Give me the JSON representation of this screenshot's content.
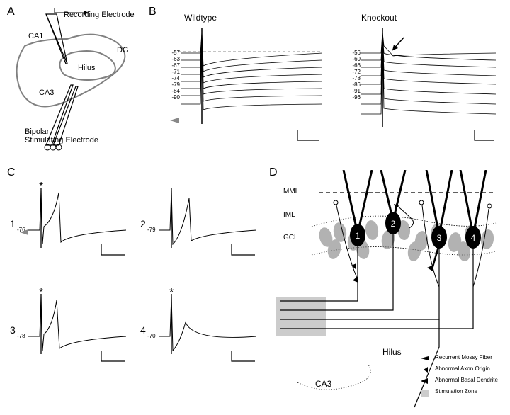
{
  "panel_labels": {
    "A": "A",
    "B": "B",
    "C": "C",
    "D": "D"
  },
  "panelA": {
    "recording_label": "Recording Electrode",
    "stim_label": "Bipolar\nStimulating Electrode",
    "regions": {
      "ca1": "CA1",
      "ca3": "CA3",
      "dg": "DG",
      "hilus": "Hilus"
    },
    "stroke": "#000000",
    "outline_stroke": "#808080",
    "outline_width": 2
  },
  "panelB": {
    "wt_label": "Wildtype",
    "ko_label": "Knockout",
    "wt_values": [
      "-57",
      "-63",
      "-67",
      "-71",
      "-74",
      "-79",
      "-84",
      "-90"
    ],
    "ko_values": [
      "-56",
      "-60",
      "-66",
      "-72",
      "-78",
      "-86",
      "-91",
      "-96"
    ],
    "trace_color": "#000000",
    "dash_color": "#888888",
    "arrow_color_grey": "#888888",
    "arrow_color_black": "#000000",
    "scalebar_color": "#000000",
    "trace_fontsize": 8
  },
  "panelC": {
    "sub_labels": {
      "c1": "1",
      "c2": "2",
      "c3": "3",
      "c4": "4"
    },
    "baselines": {
      "c1": "-76",
      "c2": "-79",
      "c3": "-78",
      "c4": "-70"
    },
    "asterisk": "*",
    "trace_color": "#000000",
    "scalebar_color": "#000000",
    "arrow_color_grey": "#888888"
  },
  "panelD": {
    "layers": {
      "mml": "MML",
      "iml": "IML",
      "gcl": "GCL"
    },
    "hilus_label": "Hilus",
    "ca3_label": "CA3",
    "cell_numbers": [
      "1",
      "2",
      "3",
      "4"
    ],
    "legend": {
      "recurrent": "Recurrent Mossy Fiber",
      "axon": "Abnormal Axon Origin",
      "dendrite": "Abnormal Basal Dendrite",
      "stim": "Stimulation Zone"
    },
    "cell_fill": "#000000",
    "ellipse_fill": "#808080",
    "ellipse_opacity": 0.6,
    "thick_line": "#000000",
    "dotted_color": "#000000",
    "stim_fill": "#cccccc",
    "legend_fontsize": 8
  },
  "figure_bg": "#ffffff",
  "label_fontsize": 16,
  "text_fontsize": 12,
  "small_fontsize": 10
}
